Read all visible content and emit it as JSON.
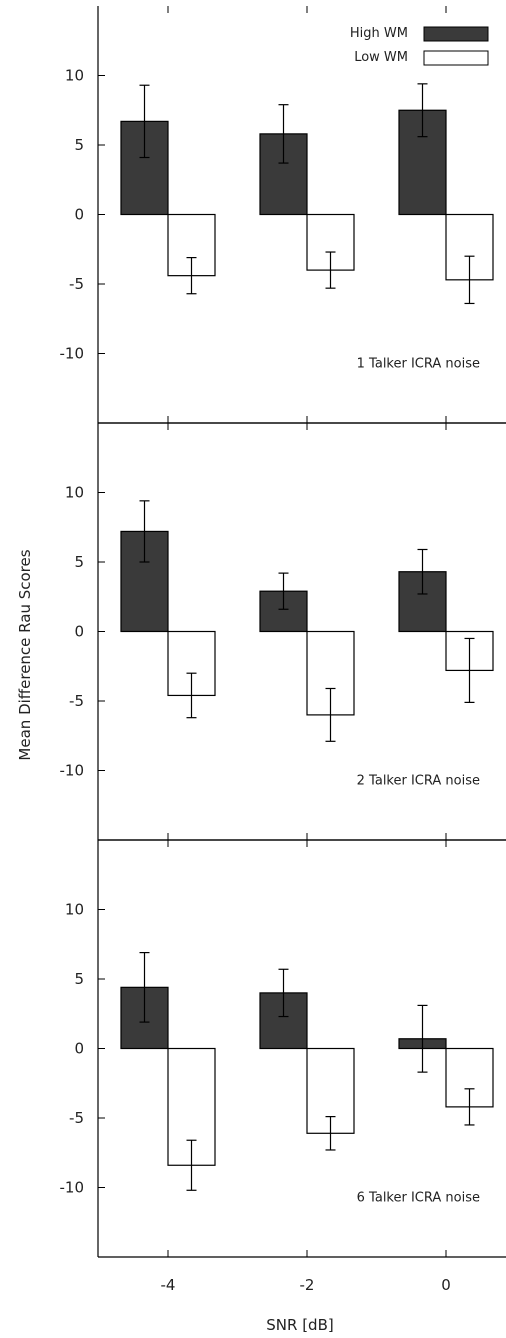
{
  "chart_data": [
    {
      "type": "bar",
      "title": "",
      "annotation": "1 Talker ICRA noise",
      "categories": [
        "-4",
        "-2",
        "0"
      ],
      "ylim": [
        -15,
        15
      ],
      "yticks": [
        -10,
        -5,
        0,
        5,
        10
      ],
      "series": [
        {
          "name": "High WM",
          "color": "#3a3a3a",
          "values": [
            6.7,
            5.8,
            7.5
          ],
          "errors": [
            2.6,
            2.1,
            1.9
          ]
        },
        {
          "name": "Low WM",
          "color": "#ffffff",
          "values": [
            -4.4,
            -4.0,
            -4.7
          ],
          "errors": [
            1.3,
            1.3,
            1.7
          ]
        }
      ]
    },
    {
      "type": "bar",
      "title": "",
      "annotation": "2 Talker ICRA noise",
      "categories": [
        "-4",
        "-2",
        "0"
      ],
      "ylim": [
        -15,
        15
      ],
      "yticks": [
        -10,
        -5,
        0,
        5,
        10
      ],
      "series": [
        {
          "name": "High WM",
          "color": "#3a3a3a",
          "values": [
            7.2,
            2.9,
            4.3
          ],
          "errors": [
            2.2,
            1.3,
            1.6
          ]
        },
        {
          "name": "Low WM",
          "color": "#ffffff",
          "values": [
            -4.6,
            -6.0,
            -2.8
          ],
          "errors": [
            1.6,
            1.9,
            2.3
          ]
        }
      ]
    },
    {
      "type": "bar",
      "title": "",
      "annotation": "6 Talker ICRA noise",
      "categories": [
        "-4",
        "-2",
        "0"
      ],
      "ylim": [
        -15,
        15
      ],
      "yticks": [
        -10,
        -5,
        0,
        5,
        10
      ],
      "series": [
        {
          "name": "High WM",
          "color": "#3a3a3a",
          "values": [
            4.4,
            4.0,
            0.7
          ],
          "errors": [
            2.5,
            1.7,
            2.4
          ]
        },
        {
          "name": "Low WM",
          "color": "#ffffff",
          "values": [
            -8.4,
            -6.1,
            -4.2
          ],
          "errors": [
            1.8,
            1.2,
            1.3
          ]
        }
      ]
    }
  ],
  "xlabel": "SNR [dB]",
  "ylabel": "Mean Difference Rau Scores",
  "legend": {
    "placement": "top-right",
    "items": [
      {
        "label": "High WM",
        "color": "#3a3a3a"
      },
      {
        "label": "Low WM",
        "color": "#ffffff"
      }
    ]
  }
}
